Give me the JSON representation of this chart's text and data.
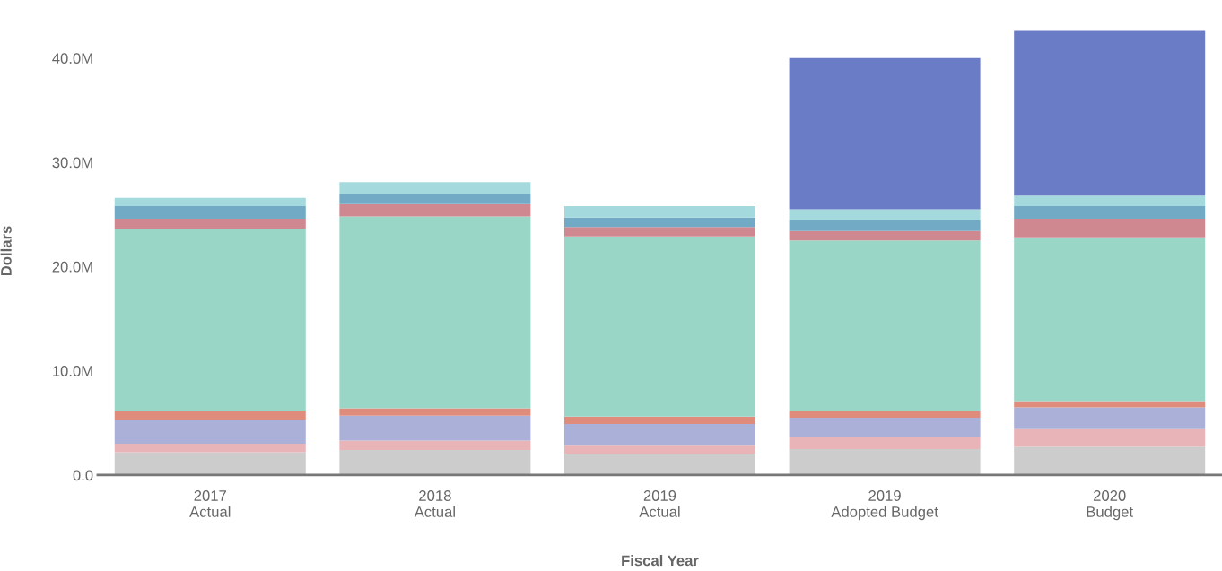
{
  "chart_data": {
    "type": "bar",
    "stacked": true,
    "xlabel": "Fiscal Year",
    "ylabel": "Dollars",
    "categories": [
      "2017\nActual",
      "2018\nActual",
      "2019\nActual",
      "2019\nAdopted Budget",
      "2020\nBudget"
    ],
    "ylim": [
      0,
      43
    ],
    "yticks": [
      {
        "value": 0,
        "label": "0.0"
      },
      {
        "value": 10,
        "label": "10.0M"
      },
      {
        "value": 20,
        "label": "20.0M"
      },
      {
        "value": 30,
        "label": "30.0M"
      },
      {
        "value": 40,
        "label": "40.0M"
      }
    ],
    "grid": false,
    "series": [
      {
        "color": "#cccccc",
        "values": [
          2.2,
          2.4,
          2.0,
          2.5,
          2.7
        ]
      },
      {
        "color": "#e8b4b8",
        "values": [
          0.8,
          0.9,
          0.9,
          1.1,
          1.7
        ]
      },
      {
        "color": "#aab0d8",
        "values": [
          2.3,
          2.4,
          2.0,
          1.9,
          2.1
        ]
      },
      {
        "color": "#e08c7c",
        "values": [
          0.9,
          0.7,
          0.7,
          0.6,
          0.6
        ]
      },
      {
        "color": "#9ad6c6",
        "values": [
          17.4,
          18.4,
          17.3,
          16.4,
          15.7
        ]
      },
      {
        "color": "#d08890",
        "values": [
          1.0,
          1.2,
          0.9,
          0.9,
          1.8
        ]
      },
      {
        "color": "#72aac6",
        "values": [
          1.2,
          1.0,
          0.9,
          1.1,
          1.2
        ]
      },
      {
        "color": "#a4dade",
        "values": [
          0.8,
          1.1,
          1.1,
          1.0,
          1.0
        ]
      },
      {
        "color": "#6a7cc6",
        "values": [
          null,
          null,
          null,
          14.5,
          15.8
        ]
      }
    ]
  }
}
